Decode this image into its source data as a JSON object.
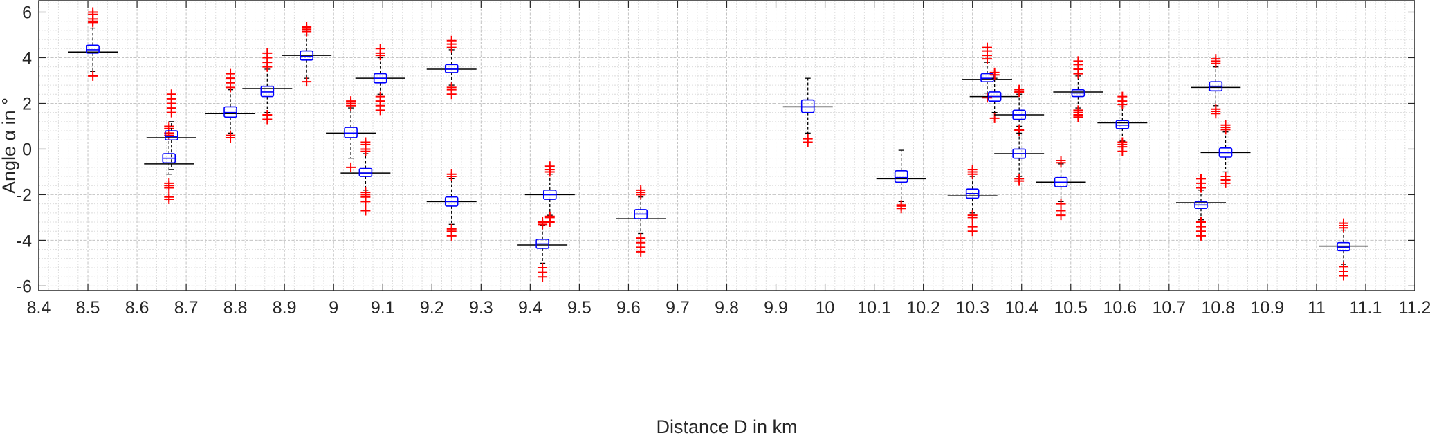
{
  "chart_data": {
    "type": "boxplot",
    "title": "",
    "xlabel": "Distance D in km",
    "ylabel": "Angle α in °",
    "xlim": [
      8.4,
      11.2
    ],
    "ylim": [
      -6.2,
      6.5
    ],
    "xticks": [
      "8.4",
      "8.5",
      "8.6",
      "8.7",
      "8.8",
      "8.9",
      "9",
      "9.1",
      "9.2",
      "9.3",
      "9.4",
      "9.5",
      "9.6",
      "9.7",
      "9.8",
      "9.9",
      "10",
      "10.1",
      "10.2",
      "10.3",
      "10.4",
      "10.5",
      "10.6",
      "10.7",
      "10.8",
      "10.9",
      "11",
      "11.1",
      "11.2"
    ],
    "yticks": [
      "-6",
      "-4",
      "-2",
      "0",
      "2",
      "4",
      "6"
    ],
    "grid": "on",
    "colors": {
      "box": "#0000ff",
      "mean_line": "#000000",
      "outlier": "#ff0000",
      "whisker": "#000000"
    },
    "boxes": [
      {
        "x": 8.51,
        "q1": 4.2,
        "median": 4.35,
        "q3": 4.55,
        "wlow": 3.4,
        "whigh": 5.3,
        "line": 4.25,
        "outliers": [
          3.2,
          5.55,
          5.6,
          5.7,
          5.9,
          6.0
        ]
      },
      {
        "x": 8.665,
        "q1": -0.6,
        "median": -0.4,
        "q3": -0.2,
        "wlow": -1.1,
        "whigh": 0.4,
        "line": -0.65,
        "outliers": [
          -2.2,
          -2.1,
          -1.7,
          -1.6,
          -1.5,
          0.6,
          0.7,
          0.9,
          1.0
        ]
      },
      {
        "x": 8.67,
        "q1": 0.4,
        "median": 0.55,
        "q3": 0.8,
        "wlow": -0.9,
        "whigh": 1.2,
        "line": 0.5,
        "outliers": [
          1.6,
          1.8,
          2.0,
          2.2,
          2.4
        ]
      },
      {
        "x": 8.79,
        "q1": 1.4,
        "median": 1.6,
        "q3": 1.85,
        "wlow": 0.7,
        "whigh": 2.6,
        "line": 1.55,
        "outliers": [
          0.5,
          0.6,
          2.7,
          2.9,
          3.1,
          3.3
        ]
      },
      {
        "x": 8.865,
        "q1": 2.3,
        "median": 2.5,
        "q3": 2.75,
        "wlow": 1.6,
        "whigh": 3.5,
        "line": 2.65,
        "outliers": [
          1.3,
          1.5,
          3.6,
          3.8,
          4.0,
          4.2
        ]
      },
      {
        "x": 8.945,
        "q1": 3.9,
        "median": 4.05,
        "q3": 4.3,
        "wlow": 3.1,
        "whigh": 5.0,
        "line": 4.1,
        "outliers": [
          2.95,
          5.15,
          5.25,
          5.35
        ]
      },
      {
        "x": 9.035,
        "q1": 0.5,
        "median": 0.7,
        "q3": 0.95,
        "wlow": -0.4,
        "whigh": 1.8,
        "line": 0.7,
        "outliers": [
          -0.8,
          1.9,
          2.0,
          2.1
        ]
      },
      {
        "x": 9.065,
        "q1": -1.2,
        "median": -1.05,
        "q3": -0.85,
        "wlow": -1.8,
        "whigh": -0.2,
        "line": -1.05,
        "outliers": [
          -2.7,
          -2.3,
          -2.1,
          -2.0,
          -1.9,
          -0.1,
          0.0,
          0.2,
          0.3
        ]
      },
      {
        "x": 9.095,
        "q1": 2.9,
        "median": 3.1,
        "q3": 3.3,
        "wlow": 2.4,
        "whigh": 4.0,
        "line": 3.1,
        "outliers": [
          1.7,
          1.9,
          2.1,
          2.3,
          4.1,
          4.2,
          4.4
        ]
      },
      {
        "x": 9.24,
        "q1": -2.5,
        "median": -2.3,
        "q3": -2.1,
        "wlow": -3.3,
        "whigh": -1.3,
        "line": -2.3,
        "outliers": [
          -3.8,
          -3.6,
          -3.5,
          -1.2,
          -1.1
        ]
      },
      {
        "x": 9.24,
        "q1": 3.35,
        "median": 3.5,
        "q3": 3.7,
        "wlow": 2.8,
        "whigh": 4.35,
        "line": 3.5,
        "outliers": [
          2.4,
          2.6,
          2.7,
          4.45,
          4.6,
          4.75
        ]
      },
      {
        "x": 9.44,
        "q1": -2.2,
        "median": -2.0,
        "q3": -1.8,
        "wlow": -2.9,
        "whigh": -1.1,
        "line": -2.0,
        "outliers": [
          -3.2,
          -3.0,
          -2.95,
          -1.0,
          -0.9,
          -0.75
        ]
      },
      {
        "x": 9.425,
        "q1": -4.35,
        "median": -4.15,
        "q3": -3.95,
        "wlow": -5.0,
        "whigh": -3.35,
        "line": -4.2,
        "outliers": [
          -5.6,
          -5.4,
          -5.2,
          -3.3,
          -3.2
        ]
      },
      {
        "x": 9.625,
        "q1": -3.05,
        "median": -2.85,
        "q3": -2.65,
        "wlow": -3.7,
        "whigh": -2.1,
        "line": -3.05,
        "outliers": [
          -4.5,
          -4.3,
          -4.1,
          -3.9,
          -2.0,
          -1.9,
          -1.8
        ]
      },
      {
        "x": 9.965,
        "q1": 1.6,
        "median": 1.85,
        "q3": 2.15,
        "wlow": 0.7,
        "whigh": 3.1,
        "line": 1.85,
        "outliers": [
          0.3,
          0.45
        ]
      },
      {
        "x": 10.155,
        "q1": -1.45,
        "median": -1.25,
        "q3": -0.95,
        "wlow": -2.3,
        "whigh": -0.05,
        "line": -1.3,
        "outliers": [
          -2.6,
          -2.5,
          -2.45
        ]
      },
      {
        "x": 10.3,
        "q1": -2.15,
        "median": -1.95,
        "q3": -1.75,
        "wlow": -2.8,
        "whigh": -1.2,
        "line": -2.05,
        "outliers": [
          -3.6,
          -3.4,
          -3.0,
          -2.9,
          -1.1,
          -1.0,
          -0.9
        ]
      },
      {
        "x": 10.33,
        "q1": 2.95,
        "median": 3.1,
        "q3": 3.3,
        "wlow": 2.45,
        "whigh": 3.8,
        "line": 3.05,
        "outliers": [
          2.25,
          3.95,
          4.1,
          4.3,
          4.45
        ]
      },
      {
        "x": 10.345,
        "q1": 2.1,
        "median": 2.3,
        "q3": 2.5,
        "wlow": 1.6,
        "whigh": 3.1,
        "line": 2.3,
        "outliers": [
          1.35,
          3.25,
          3.35
        ]
      },
      {
        "x": 10.395,
        "q1": 1.3,
        "median": 1.5,
        "q3": 1.7,
        "wlow": 1.0,
        "whigh": 2.4,
        "line": 1.5,
        "outliers": [
          2.5,
          2.6,
          0.8,
          0.85
        ]
      },
      {
        "x": 10.395,
        "q1": -0.4,
        "median": -0.2,
        "q3": 0.0,
        "wlow": -1.2,
        "whigh": 0.7,
        "line": -0.2,
        "outliers": [
          -1.4,
          -1.3
        ]
      },
      {
        "x": 10.48,
        "q1": -1.65,
        "median": -1.45,
        "q3": -1.25,
        "wlow": -2.3,
        "whigh": -0.65,
        "line": -1.45,
        "outliers": [
          -2.9,
          -2.7,
          -2.4,
          -0.6,
          -0.5
        ]
      },
      {
        "x": 10.515,
        "q1": 2.3,
        "median": 2.45,
        "q3": 2.6,
        "wlow": 1.8,
        "whigh": 3.2,
        "line": 2.5,
        "outliers": [
          1.4,
          1.5,
          1.6,
          1.7,
          3.3,
          3.5,
          3.7,
          3.85
        ]
      },
      {
        "x": 10.605,
        "q1": 0.9,
        "median": 1.05,
        "q3": 1.25,
        "wlow": 0.35,
        "whigh": 1.85,
        "line": 1.15,
        "outliers": [
          -0.1,
          0.1,
          0.2,
          0.3,
          1.95,
          2.1,
          2.3
        ]
      },
      {
        "x": 10.765,
        "q1": -2.6,
        "median": -2.45,
        "q3": -2.3,
        "wlow": -3.1,
        "whigh": -1.8,
        "line": -2.35,
        "outliers": [
          -3.8,
          -3.6,
          -3.4,
          -3.2,
          -1.7,
          -1.5,
          -1.3
        ]
      },
      {
        "x": 10.795,
        "q1": 2.55,
        "median": 2.75,
        "q3": 2.95,
        "wlow": 1.9,
        "whigh": 3.6,
        "line": 2.7,
        "outliers": [
          1.55,
          1.65,
          1.75,
          3.75,
          3.85,
          3.95
        ]
      },
      {
        "x": 10.815,
        "q1": -0.35,
        "median": -0.15,
        "q3": 0.05,
        "wlow": -1.0,
        "whigh": 0.75,
        "line": -0.15,
        "outliers": [
          -1.5,
          -1.35,
          -1.2,
          0.85,
          0.95,
          1.05
        ]
      },
      {
        "x": 11.055,
        "q1": -4.45,
        "median": -4.3,
        "q3": -4.1,
        "wlow": -5.05,
        "whigh": -3.55,
        "line": -4.25,
        "outliers": [
          -5.55,
          -5.35,
          -5.15,
          -3.45,
          -3.35,
          -3.25
        ]
      }
    ]
  }
}
